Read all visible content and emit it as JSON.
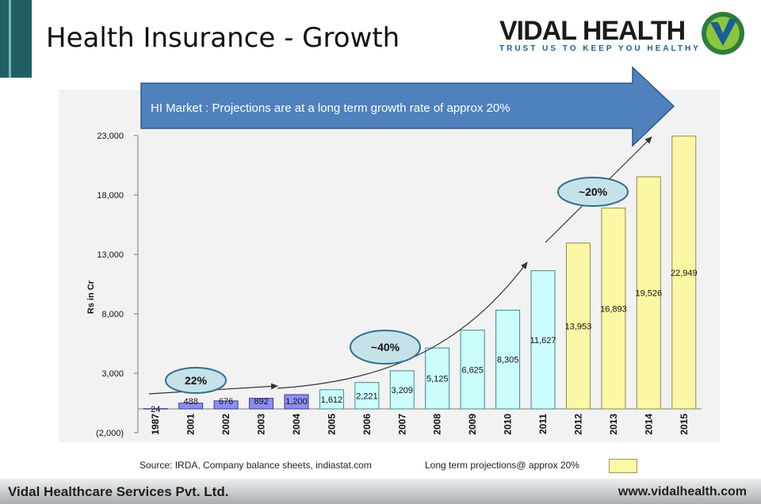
{
  "slide": {
    "title": "Health Insurance - Growth",
    "logo_name": "VIDAL HEALTH",
    "logo_tagline": "TRUST US TO KEEP YOU HEALTHY",
    "logo_icon": "v-check-icon",
    "source_note": "Source: IRDA, Company balance sheets, indiastat.com",
    "projection_note": "Long term projections@ approx 20%",
    "footer_left": "Vidal Healthcare Services Pvt. Ltd.",
    "footer_right": "www.vidalhealth.com",
    "colors": {
      "accent_bar": "#1f5f63",
      "arrow_fill": "#4f81bd",
      "bar_purple": "#8c8ef0",
      "bar_cyan": "#ccfdfd",
      "bar_yellow": "#fbf7a5",
      "ellipse_fill": "#c6e2e9"
    }
  },
  "chart_data": {
    "type": "bar",
    "ylabel": "Rs in Cr",
    "ylim": [
      -2000,
      23000
    ],
    "yticks": [
      -2000,
      3000,
      8000,
      13000,
      18000,
      23000
    ],
    "ytick_labels": [
      "(2,000)",
      "3,000",
      "8,000",
      "13,000",
      "18,000",
      "23,000"
    ],
    "grid": false,
    "categories": [
      "1987",
      "2001",
      "2002",
      "2003",
      "2004",
      "2005",
      "2006",
      "2007",
      "2008",
      "2009",
      "2010",
      "2011",
      "2012",
      "2013",
      "2014",
      "2015"
    ],
    "values": [
      24,
      488,
      676,
      892,
      1200,
      1612,
      2221,
      3209,
      5125,
      6625,
      8305,
      11627,
      13953,
      16893,
      19526,
      22949
    ],
    "value_labels": [
      "24",
      "488",
      "676",
      "892",
      "1,200",
      "1,612",
      "2,221",
      "3,209",
      "5,125",
      "6,625",
      "8,305",
      "11,627",
      "13,953",
      "16,893",
      "19,526",
      "22,949"
    ],
    "bar_groups": [
      "purple",
      "purple",
      "purple",
      "purple",
      "purple",
      "cyan",
      "cyan",
      "cyan",
      "cyan",
      "cyan",
      "cyan",
      "cyan",
      "yellow",
      "yellow",
      "yellow",
      "yellow"
    ],
    "callout": "HI Market : Projections are at a long term growth rate of approx 20%",
    "growth_labels": [
      "22%",
      "~40%",
      "~20%"
    ]
  }
}
